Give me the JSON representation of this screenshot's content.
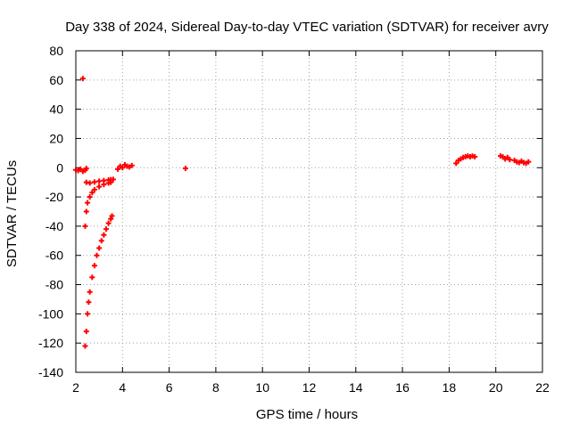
{
  "chart_data": {
    "type": "scatter",
    "title": "Day 338 of 2024, Sidereal Day-to-day VTEC variation (SDTVAR) for receiver avry",
    "xlabel": "GPS time / hours",
    "ylabel": "SDTVAR / TECUs",
    "xlim": [
      2,
      22
    ],
    "ylim": [
      -140,
      80
    ],
    "x_ticks": [
      2,
      4,
      6,
      8,
      10,
      12,
      14,
      16,
      18,
      20,
      22
    ],
    "y_ticks": [
      -140,
      -120,
      -100,
      -80,
      -60,
      -40,
      -20,
      0,
      20,
      40,
      60,
      80
    ],
    "grid": true,
    "marker": "+",
    "series_color": "#ff0000",
    "series": [
      {
        "points": [
          [
            2.0,
            -1.5
          ],
          [
            2.1,
            -2.0
          ],
          [
            2.2,
            -1.0
          ],
          [
            2.3,
            -2.5
          ],
          [
            2.4,
            -1.8
          ],
          [
            2.45,
            -0.5
          ],
          [
            2.3,
            61.0
          ],
          [
            2.4,
            -40.0
          ],
          [
            2.45,
            -30.0
          ],
          [
            2.5,
            -24.0
          ],
          [
            2.6,
            -20.0
          ],
          [
            2.7,
            -17.0
          ],
          [
            2.8,
            -15.0
          ],
          [
            3.0,
            -13.0
          ],
          [
            3.2,
            -11.5
          ],
          [
            3.4,
            -10.5
          ],
          [
            3.5,
            -10.0
          ],
          [
            2.45,
            -10.0
          ],
          [
            2.6,
            -10.5
          ],
          [
            2.8,
            -9.8
          ],
          [
            3.0,
            -9.2
          ],
          [
            3.2,
            -8.8
          ],
          [
            3.4,
            -8.4
          ],
          [
            3.5,
            -8.2
          ],
          [
            3.6,
            -8.0
          ],
          [
            2.4,
            -122.0
          ],
          [
            2.45,
            -112.0
          ],
          [
            2.5,
            -100.0
          ],
          [
            2.55,
            -92.0
          ],
          [
            2.6,
            -85.0
          ],
          [
            2.7,
            -75.0
          ],
          [
            2.8,
            -67.0
          ],
          [
            2.9,
            -60.0
          ],
          [
            3.0,
            -55.0
          ],
          [
            3.1,
            -50.0
          ],
          [
            3.2,
            -46.0
          ],
          [
            3.3,
            -42.0
          ],
          [
            3.4,
            -38.0
          ],
          [
            3.5,
            -35.0
          ],
          [
            3.55,
            -33.0
          ],
          [
            3.8,
            -1.0
          ],
          [
            3.9,
            1.0
          ],
          [
            4.0,
            0.0
          ],
          [
            4.1,
            2.0
          ],
          [
            4.2,
            1.0
          ],
          [
            4.3,
            0.5
          ],
          [
            4.4,
            1.5
          ],
          [
            6.7,
            -0.5
          ],
          [
            18.3,
            3.0
          ],
          [
            18.4,
            5.0
          ],
          [
            18.5,
            6.0
          ],
          [
            18.6,
            7.0
          ],
          [
            18.7,
            7.5
          ],
          [
            18.8,
            8.0
          ],
          [
            18.9,
            7.5
          ],
          [
            19.0,
            8.0
          ],
          [
            19.1,
            7.5
          ],
          [
            20.2,
            8.0
          ],
          [
            20.3,
            7.5
          ],
          [
            20.4,
            6.0
          ],
          [
            20.5,
            7.0
          ],
          [
            20.6,
            5.5
          ],
          [
            20.8,
            5.0
          ],
          [
            20.9,
            4.0
          ],
          [
            21.0,
            3.5
          ],
          [
            21.1,
            4.5
          ],
          [
            21.2,
            3.5
          ],
          [
            21.3,
            3.0
          ],
          [
            21.4,
            4.0
          ]
        ]
      }
    ]
  }
}
